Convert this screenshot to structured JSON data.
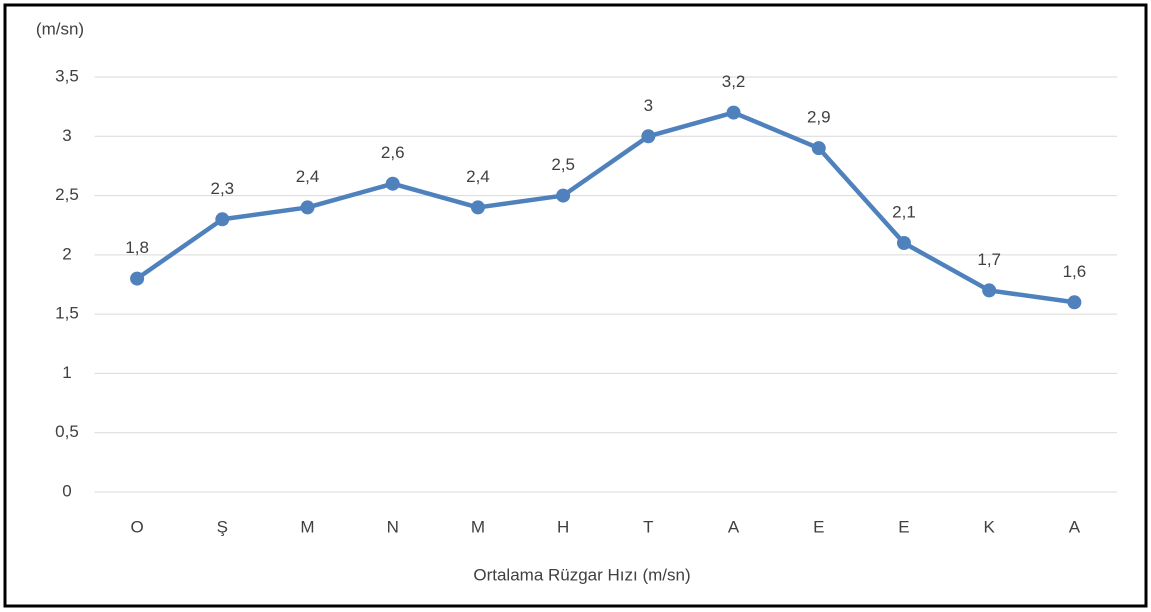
{
  "chart_data": {
    "type": "line",
    "y_axis_label": "(m/sn)",
    "x_axis_label": "Ortalama Rüzgar Hızı (m/sn)",
    "categories": [
      "O",
      "Ş",
      "M",
      "N",
      "M",
      "H",
      "T",
      "A",
      "E",
      "E",
      "K",
      "A"
    ],
    "values": [
      1.8,
      2.3,
      2.4,
      2.6,
      2.4,
      2.5,
      3,
      3.2,
      2.9,
      2.1,
      1.7,
      1.6
    ],
    "value_labels": [
      "1,8",
      "2,3",
      "2,4",
      "2,6",
      "2,4",
      "2,5",
      "3",
      "3,2",
      "2,9",
      "2,1",
      "1,7",
      "1,6"
    ],
    "color": "#4f81bd",
    "ylim": [
      0,
      3.5
    ],
    "yticks": [
      0,
      {
        "value": 0.5,
        "label": "0,5"
      },
      1,
      {
        "value": 1.5,
        "label": "1,5"
      },
      2,
      {
        "value": 2.5,
        "label": "2,5"
      },
      3,
      {
        "value": 3.5,
        "label": "3,5"
      }
    ],
    "grid": true
  }
}
